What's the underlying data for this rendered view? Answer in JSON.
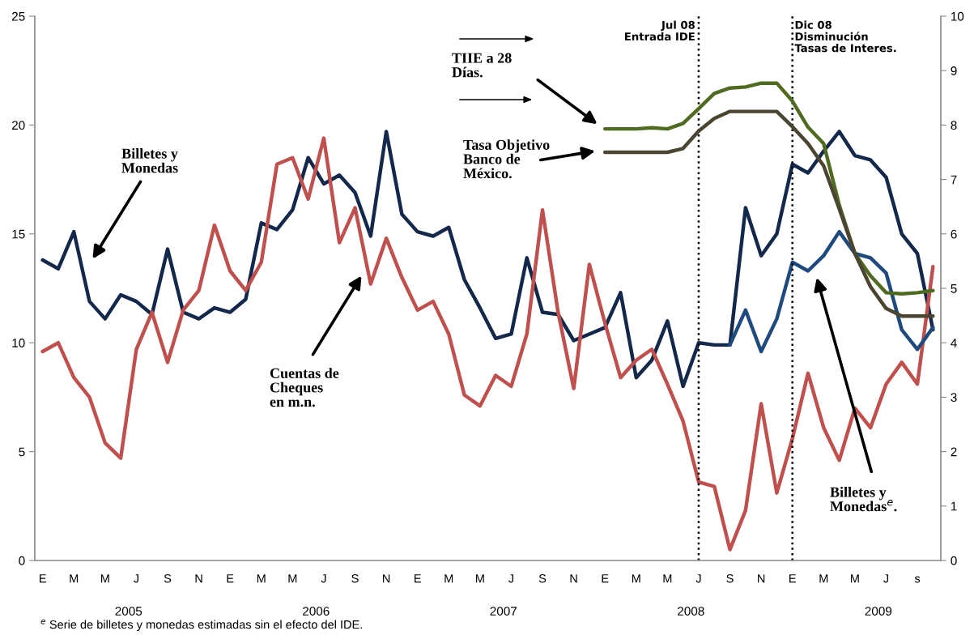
{
  "chart_data": {
    "type": "line",
    "categories": [
      "E",
      null,
      "M",
      null,
      "M",
      null,
      "J",
      null,
      "S",
      null,
      "N",
      null,
      "E",
      null,
      "M",
      null,
      "M",
      null,
      "J",
      null,
      "S",
      null,
      "N",
      null,
      "E",
      null,
      "M",
      null,
      "M",
      null,
      "J",
      null,
      "S",
      null,
      "N",
      null,
      "E",
      null,
      "M",
      null,
      "M",
      null,
      "J",
      null,
      "S",
      null,
      "N",
      null,
      "E",
      null,
      "M",
      null,
      "M",
      null,
      "J",
      null,
      "s",
      null
    ],
    "series": [
      {
        "color": "#14284b",
        "values": [
          13.8,
          13.4,
          15.1,
          11.9,
          11.1,
          12.2,
          11.9,
          11.3,
          14.3,
          11.4,
          11.1,
          11.6,
          11.4,
          12.0,
          15.5,
          15.2,
          16.1,
          18.5,
          17.3,
          17.7,
          16.9,
          14.9,
          19.7,
          15.9,
          15.1,
          14.9,
          15.3,
          12.9,
          11.6,
          10.2,
          10.4,
          13.9,
          11.4,
          11.3,
          10.1,
          10.4,
          10.7,
          12.3,
          8.4,
          9.2,
          11.0,
          8.0,
          10.0,
          9.9,
          9.9,
          16.2,
          14.0,
          15.0,
          18.2,
          17.8,
          18.8,
          19.7,
          18.6,
          18.4,
          17.6,
          15.0,
          14.1,
          10.6
        ]
      },
      {
        "color": "#c0504d",
        "values": [
          9.6,
          10.0,
          8.4,
          7.5,
          5.4,
          4.7,
          9.7,
          11.4,
          9.1,
          11.5,
          12.4,
          15.4,
          13.3,
          12.4,
          13.7,
          18.2,
          18.5,
          16.6,
          19.4,
          14.6,
          16.2,
          12.7,
          14.8,
          13.0,
          11.5,
          11.9,
          10.4,
          7.6,
          7.1,
          8.5,
          8.0,
          10.4,
          16.1,
          11.4,
          7.9,
          13.6,
          10.9,
          8.4,
          9.2,
          9.7,
          8.1,
          6.4,
          3.6,
          3.4,
          0.5,
          2.3,
          7.2,
          3.1,
          5.6,
          8.6,
          6.1,
          4.6,
          7.0,
          6.1,
          8.1,
          9.1,
          8.1,
          13.5
        ]
      },
      {
        "color": "#1f4a7d",
        "values": [
          null,
          null,
          null,
          null,
          null,
          null,
          null,
          null,
          null,
          null,
          null,
          null,
          null,
          null,
          null,
          null,
          null,
          null,
          null,
          null,
          null,
          null,
          null,
          null,
          null,
          null,
          null,
          null,
          null,
          null,
          null,
          null,
          null,
          null,
          null,
          null,
          null,
          null,
          null,
          null,
          null,
          null,
          null,
          null,
          9.9,
          11.5,
          9.6,
          11.1,
          13.7,
          13.3,
          14.0,
          15.1,
          14.1,
          13.9,
          13.2,
          10.6,
          9.7,
          10.7
        ]
      },
      {
        "color": "#4f6b22",
        "axis": "y2",
        "values": [
          null,
          null,
          null,
          null,
          null,
          null,
          null,
          null,
          null,
          null,
          null,
          null,
          null,
          null,
          null,
          null,
          null,
          null,
          null,
          null,
          null,
          null,
          null,
          null,
          null,
          null,
          null,
          null,
          null,
          null,
          null,
          null,
          null,
          null,
          null,
          null,
          7.93,
          7.93,
          7.93,
          7.95,
          7.93,
          8.03,
          8.3,
          8.58,
          8.68,
          8.7,
          8.77,
          8.77,
          8.44,
          7.96,
          7.66,
          6.53,
          5.64,
          5.23,
          4.92,
          4.9,
          4.92,
          4.96
        ]
      },
      {
        "color": "#4a4430",
        "axis": "y2",
        "values": [
          null,
          null,
          null,
          null,
          null,
          null,
          null,
          null,
          null,
          null,
          null,
          null,
          null,
          null,
          null,
          null,
          null,
          null,
          null,
          null,
          null,
          null,
          null,
          null,
          null,
          null,
          null,
          null,
          null,
          null,
          null,
          null,
          null,
          null,
          null,
          null,
          7.5,
          7.5,
          7.5,
          7.5,
          7.5,
          7.57,
          7.89,
          8.12,
          8.25,
          8.25,
          8.25,
          8.25,
          7.97,
          7.66,
          7.25,
          6.46,
          5.64,
          5.03,
          4.63,
          4.49,
          4.49,
          4.49
        ]
      }
    ],
    "ylim": [
      0,
      25
    ],
    "yticks": [
      0,
      5,
      10,
      15,
      20,
      25
    ],
    "y2lim": [
      0,
      10
    ],
    "y2ticks": [
      0,
      1,
      2,
      3,
      4,
      5,
      6,
      7,
      8,
      9,
      10
    ],
    "annotations": [
      "Billetes y\nMonedas",
      "Cuentas de\nCheques\nen m.n.",
      "TIIE a 28\nDías.",
      "Tasa Objetivo\nBanco de\nMéxico.",
      "Billetes y\nMonedas$^{e}$.",
      "Jul 08\nEntrada IDE",
      "Dic 08\nDisminución\nTasas de Interes.",
      "2005",
      "2006",
      "2007",
      "2008",
      "2009",
      "$^{e}$ Serie de billetes y monedas estimadas sin el efecto del IDE."
    ],
    "marker": "none",
    "line_style": "solid"
  }
}
